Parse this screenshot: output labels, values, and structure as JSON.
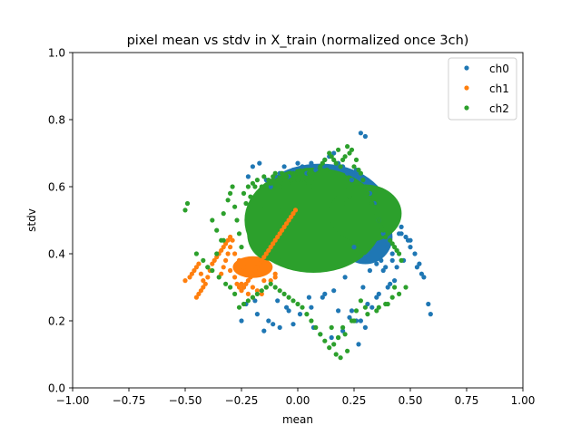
{
  "chart_data": {
    "type": "scatter",
    "title": "pixel mean vs stdv in X_train (normalized once 3ch)",
    "xlabel": "mean",
    "ylabel": "stdv",
    "xlim": [
      -1.0,
      1.0
    ],
    "ylim": [
      0.0,
      1.0
    ],
    "xticks": [
      "−1.00",
      "−0.75",
      "−0.50",
      "−0.25",
      "0.00",
      "0.25",
      "0.50",
      "0.75",
      "1.00"
    ],
    "xtick_values": [
      -1.0,
      -0.75,
      -0.5,
      -0.25,
      0.0,
      0.25,
      0.5,
      0.75,
      1.0
    ],
    "yticks": [
      "0.0",
      "0.2",
      "0.4",
      "0.6",
      "0.8",
      "1.0"
    ],
    "ytick_values": [
      0.0,
      0.2,
      0.4,
      0.6,
      0.8,
      1.0
    ],
    "grid": false,
    "legend_position": "top-right",
    "series": [
      {
        "name": "ch0",
        "color": "#1f77b4",
        "x": [
          -0.22,
          -0.2,
          -0.17,
          -0.14,
          -0.12,
          -0.1,
          -0.08,
          -0.06,
          -0.04,
          -0.02,
          0.0,
          0.02,
          0.04,
          0.06,
          0.08,
          0.1,
          0.12,
          0.14,
          0.16,
          0.18,
          0.2,
          0.22,
          0.24,
          0.26,
          0.28,
          0.3,
          0.32,
          0.34,
          0.36,
          0.38,
          0.4,
          0.42,
          0.44,
          0.46,
          0.48,
          0.5,
          0.52,
          0.54,
          0.56,
          0.58,
          0.59,
          0.27,
          0.29,
          0.26,
          0.3,
          0.33,
          0.36,
          0.4,
          0.43,
          0.47,
          0.5,
          0.45,
          0.49,
          0.53,
          0.55,
          0.38,
          0.35,
          0.31,
          0.28,
          0.24,
          -0.25,
          -0.23,
          -0.18,
          -0.15,
          -0.11,
          -0.05,
          0.05,
          0.12,
          0.18,
          0.23,
          0.1,
          0.15,
          0.2,
          0.07,
          -0.02,
          -0.08,
          -0.13,
          -0.19,
          -0.24,
          0.32,
          0.37,
          0.42,
          0.44,
          0.46,
          0.25,
          0.3,
          0.35,
          0.39,
          0.41,
          0.21,
          0.16,
          0.11,
          0.06,
          0.01,
          -0.04,
          -0.09
        ],
        "y": [
          0.63,
          0.66,
          0.67,
          0.62,
          0.6,
          0.63,
          0.64,
          0.66,
          0.63,
          0.65,
          0.67,
          0.66,
          0.64,
          0.67,
          0.65,
          0.66,
          0.68,
          0.69,
          0.7,
          0.67,
          0.66,
          0.64,
          0.62,
          0.65,
          0.76,
          0.75,
          0.58,
          0.55,
          0.5,
          0.46,
          0.42,
          0.38,
          0.36,
          0.48,
          0.45,
          0.44,
          0.4,
          0.37,
          0.33,
          0.25,
          0.22,
          0.13,
          0.3,
          0.2,
          0.18,
          0.24,
          0.28,
          0.3,
          0.32,
          0.38,
          0.42,
          0.46,
          0.44,
          0.36,
          0.34,
          0.35,
          0.27,
          0.25,
          0.2,
          0.23,
          0.2,
          0.25,
          0.22,
          0.17,
          0.19,
          0.24,
          0.27,
          0.28,
          0.23,
          0.21,
          0.16,
          0.15,
          0.17,
          0.18,
          0.19,
          0.18,
          0.2,
          0.26,
          0.3,
          0.35,
          0.38,
          0.4,
          0.41,
          0.46,
          0.42,
          0.39,
          0.37,
          0.36,
          0.31,
          0.33,
          0.29,
          0.27,
          0.24,
          0.22,
          0.23,
          0.26
        ]
      },
      {
        "name": "ch1",
        "color": "#ff7f0e",
        "x": [
          -0.5,
          -0.48,
          -0.47,
          -0.46,
          -0.45,
          -0.44,
          -0.43,
          -0.42,
          -0.45,
          -0.44,
          -0.43,
          -0.42,
          -0.41,
          -0.4,
          -0.39,
          -0.38,
          -0.37,
          -0.36,
          -0.35,
          -0.34,
          -0.33,
          -0.32,
          -0.31,
          -0.3,
          -0.29,
          -0.3,
          -0.31,
          -0.32,
          -0.33,
          -0.34,
          -0.28,
          -0.27,
          -0.26,
          -0.25,
          -0.24,
          -0.23,
          -0.22,
          -0.21,
          -0.2,
          -0.19,
          -0.18,
          -0.17,
          -0.16,
          -0.15,
          -0.14,
          -0.13,
          -0.12,
          -0.11,
          -0.1,
          -0.09,
          -0.08,
          -0.07,
          -0.06,
          -0.05,
          -0.04,
          -0.03,
          -0.02,
          -0.01,
          -0.22,
          -0.2,
          -0.18,
          -0.16,
          -0.14,
          -0.12,
          -0.1,
          -0.24,
          -0.26,
          -0.28,
          -0.3,
          -0.25,
          -0.2,
          -0.15,
          -0.1
        ],
        "y": [
          0.32,
          0.33,
          0.34,
          0.35,
          0.36,
          0.37,
          0.34,
          0.32,
          0.27,
          0.28,
          0.29,
          0.3,
          0.31,
          0.33,
          0.35,
          0.37,
          0.38,
          0.39,
          0.4,
          0.41,
          0.42,
          0.43,
          0.44,
          0.45,
          0.44,
          0.42,
          0.4,
          0.38,
          0.36,
          0.34,
          0.33,
          0.31,
          0.3,
          0.29,
          0.3,
          0.31,
          0.32,
          0.33,
          0.34,
          0.35,
          0.36,
          0.37,
          0.38,
          0.39,
          0.4,
          0.41,
          0.42,
          0.43,
          0.44,
          0.45,
          0.46,
          0.47,
          0.48,
          0.49,
          0.5,
          0.51,
          0.52,
          0.53,
          0.28,
          0.27,
          0.29,
          0.28,
          0.3,
          0.32,
          0.34,
          0.36,
          0.38,
          0.4,
          0.35,
          0.31,
          0.3,
          0.32,
          0.33
        ]
      },
      {
        "name": "ch2",
        "color": "#2ca02c",
        "x": [
          -0.5,
          -0.49,
          -0.45,
          -0.42,
          -0.4,
          -0.38,
          -0.36,
          -0.34,
          -0.33,
          -0.31,
          -0.3,
          -0.29,
          -0.28,
          -0.27,
          -0.26,
          -0.25,
          -0.24,
          -0.23,
          -0.22,
          -0.21,
          -0.2,
          -0.19,
          -0.18,
          -0.17,
          -0.16,
          -0.15,
          -0.14,
          -0.13,
          -0.12,
          -0.11,
          -0.1,
          -0.09,
          -0.08,
          -0.07,
          -0.06,
          -0.05,
          -0.04,
          -0.03,
          -0.02,
          -0.01,
          0.0,
          0.01,
          0.02,
          0.03,
          0.04,
          0.05,
          0.06,
          0.07,
          0.08,
          0.09,
          0.1,
          0.11,
          0.12,
          0.13,
          0.14,
          0.15,
          0.16,
          0.17,
          0.18,
          0.19,
          0.2,
          0.21,
          0.22,
          0.23,
          0.24,
          0.25,
          0.26,
          0.27,
          0.28,
          0.29,
          0.3,
          0.31,
          0.32,
          0.33,
          0.34,
          0.35,
          0.36,
          0.37,
          0.38,
          0.39,
          0.4,
          0.41,
          0.42,
          0.43,
          0.44,
          0.45,
          0.46,
          0.48,
          0.45,
          0.43,
          0.4,
          0.35,
          0.3,
          0.25,
          0.2,
          0.18,
          0.16,
          0.14,
          0.12,
          0.1,
          0.08,
          0.06,
          0.04,
          0.02,
          0.0,
          -0.02,
          -0.04,
          -0.06,
          -0.08,
          -0.1,
          -0.12,
          -0.14,
          -0.16,
          -0.18,
          -0.2,
          -0.22,
          -0.24,
          -0.26,
          -0.28,
          -0.3,
          -0.32,
          -0.35,
          -0.38,
          -0.4,
          -0.36,
          -0.33,
          0.22,
          0.18,
          0.15,
          0.17,
          0.19,
          0.21,
          0.24,
          0.26,
          0.28,
          0.31,
          0.36,
          0.39,
          0.42,
          0.26,
          0.23,
          0.2
        ],
        "y": [
          0.53,
          0.55,
          0.4,
          0.38,
          0.36,
          0.5,
          0.47,
          0.44,
          0.52,
          0.56,
          0.58,
          0.6,
          0.54,
          0.5,
          0.46,
          0.42,
          0.58,
          0.55,
          0.6,
          0.57,
          0.61,
          0.6,
          0.62,
          0.58,
          0.6,
          0.63,
          0.6,
          0.62,
          0.61,
          0.63,
          0.64,
          0.62,
          0.6,
          0.64,
          0.62,
          0.63,
          0.61,
          0.62,
          0.64,
          0.63,
          0.62,
          0.6,
          0.63,
          0.61,
          0.62,
          0.64,
          0.6,
          0.63,
          0.62,
          0.64,
          0.66,
          0.67,
          0.68,
          0.65,
          0.7,
          0.69,
          0.68,
          0.67,
          0.71,
          0.66,
          0.68,
          0.69,
          0.72,
          0.7,
          0.71,
          0.66,
          0.68,
          0.65,
          0.64,
          0.62,
          0.6,
          0.58,
          0.56,
          0.55,
          0.54,
          0.52,
          0.5,
          0.48,
          0.47,
          0.45,
          0.46,
          0.44,
          0.43,
          0.42,
          0.41,
          0.4,
          0.38,
          0.3,
          0.28,
          0.3,
          0.25,
          0.23,
          0.24,
          0.2,
          0.18,
          0.15,
          0.13,
          0.12,
          0.14,
          0.16,
          0.18,
          0.2,
          0.22,
          0.24,
          0.25,
          0.26,
          0.27,
          0.28,
          0.29,
          0.3,
          0.31,
          0.3,
          0.29,
          0.28,
          0.27,
          0.26,
          0.25,
          0.24,
          0.28,
          0.3,
          0.31,
          0.33,
          0.35,
          0.36,
          0.4,
          0.44,
          0.11,
          0.15,
          0.18,
          0.1,
          0.09,
          0.16,
          0.2,
          0.23,
          0.26,
          0.22,
          0.24,
          0.25,
          0.27,
          0.6,
          0.57,
          0.55
        ]
      }
    ]
  }
}
